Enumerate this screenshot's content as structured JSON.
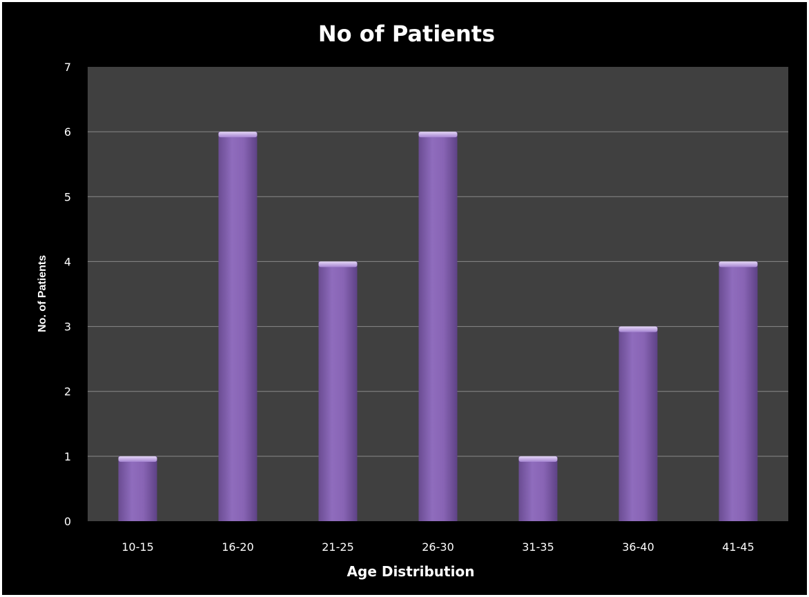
{
  "chart_data": {
    "type": "bar",
    "title": "No of Patients",
    "xlabel": "Age Distribution",
    "ylabel": "No. of Patients",
    "categories": [
      "10-15",
      "16-20",
      "21-25",
      "26-30",
      "31-35",
      "36-40",
      "41-45"
    ],
    "values": [
      1,
      6,
      4,
      6,
      1,
      3,
      4
    ],
    "ylim": [
      0,
      7
    ],
    "yticks": [
      "0",
      "1",
      "2",
      "3",
      "4",
      "5",
      "6",
      "7"
    ],
    "grid": true,
    "legend": "none",
    "colors": {
      "background": "#000000",
      "plot_area": "#404040",
      "gridline": "#8a8a8a",
      "bar": "#8864b4",
      "bar_highlight": "#c8b0e8",
      "text": "#ffffff"
    }
  }
}
